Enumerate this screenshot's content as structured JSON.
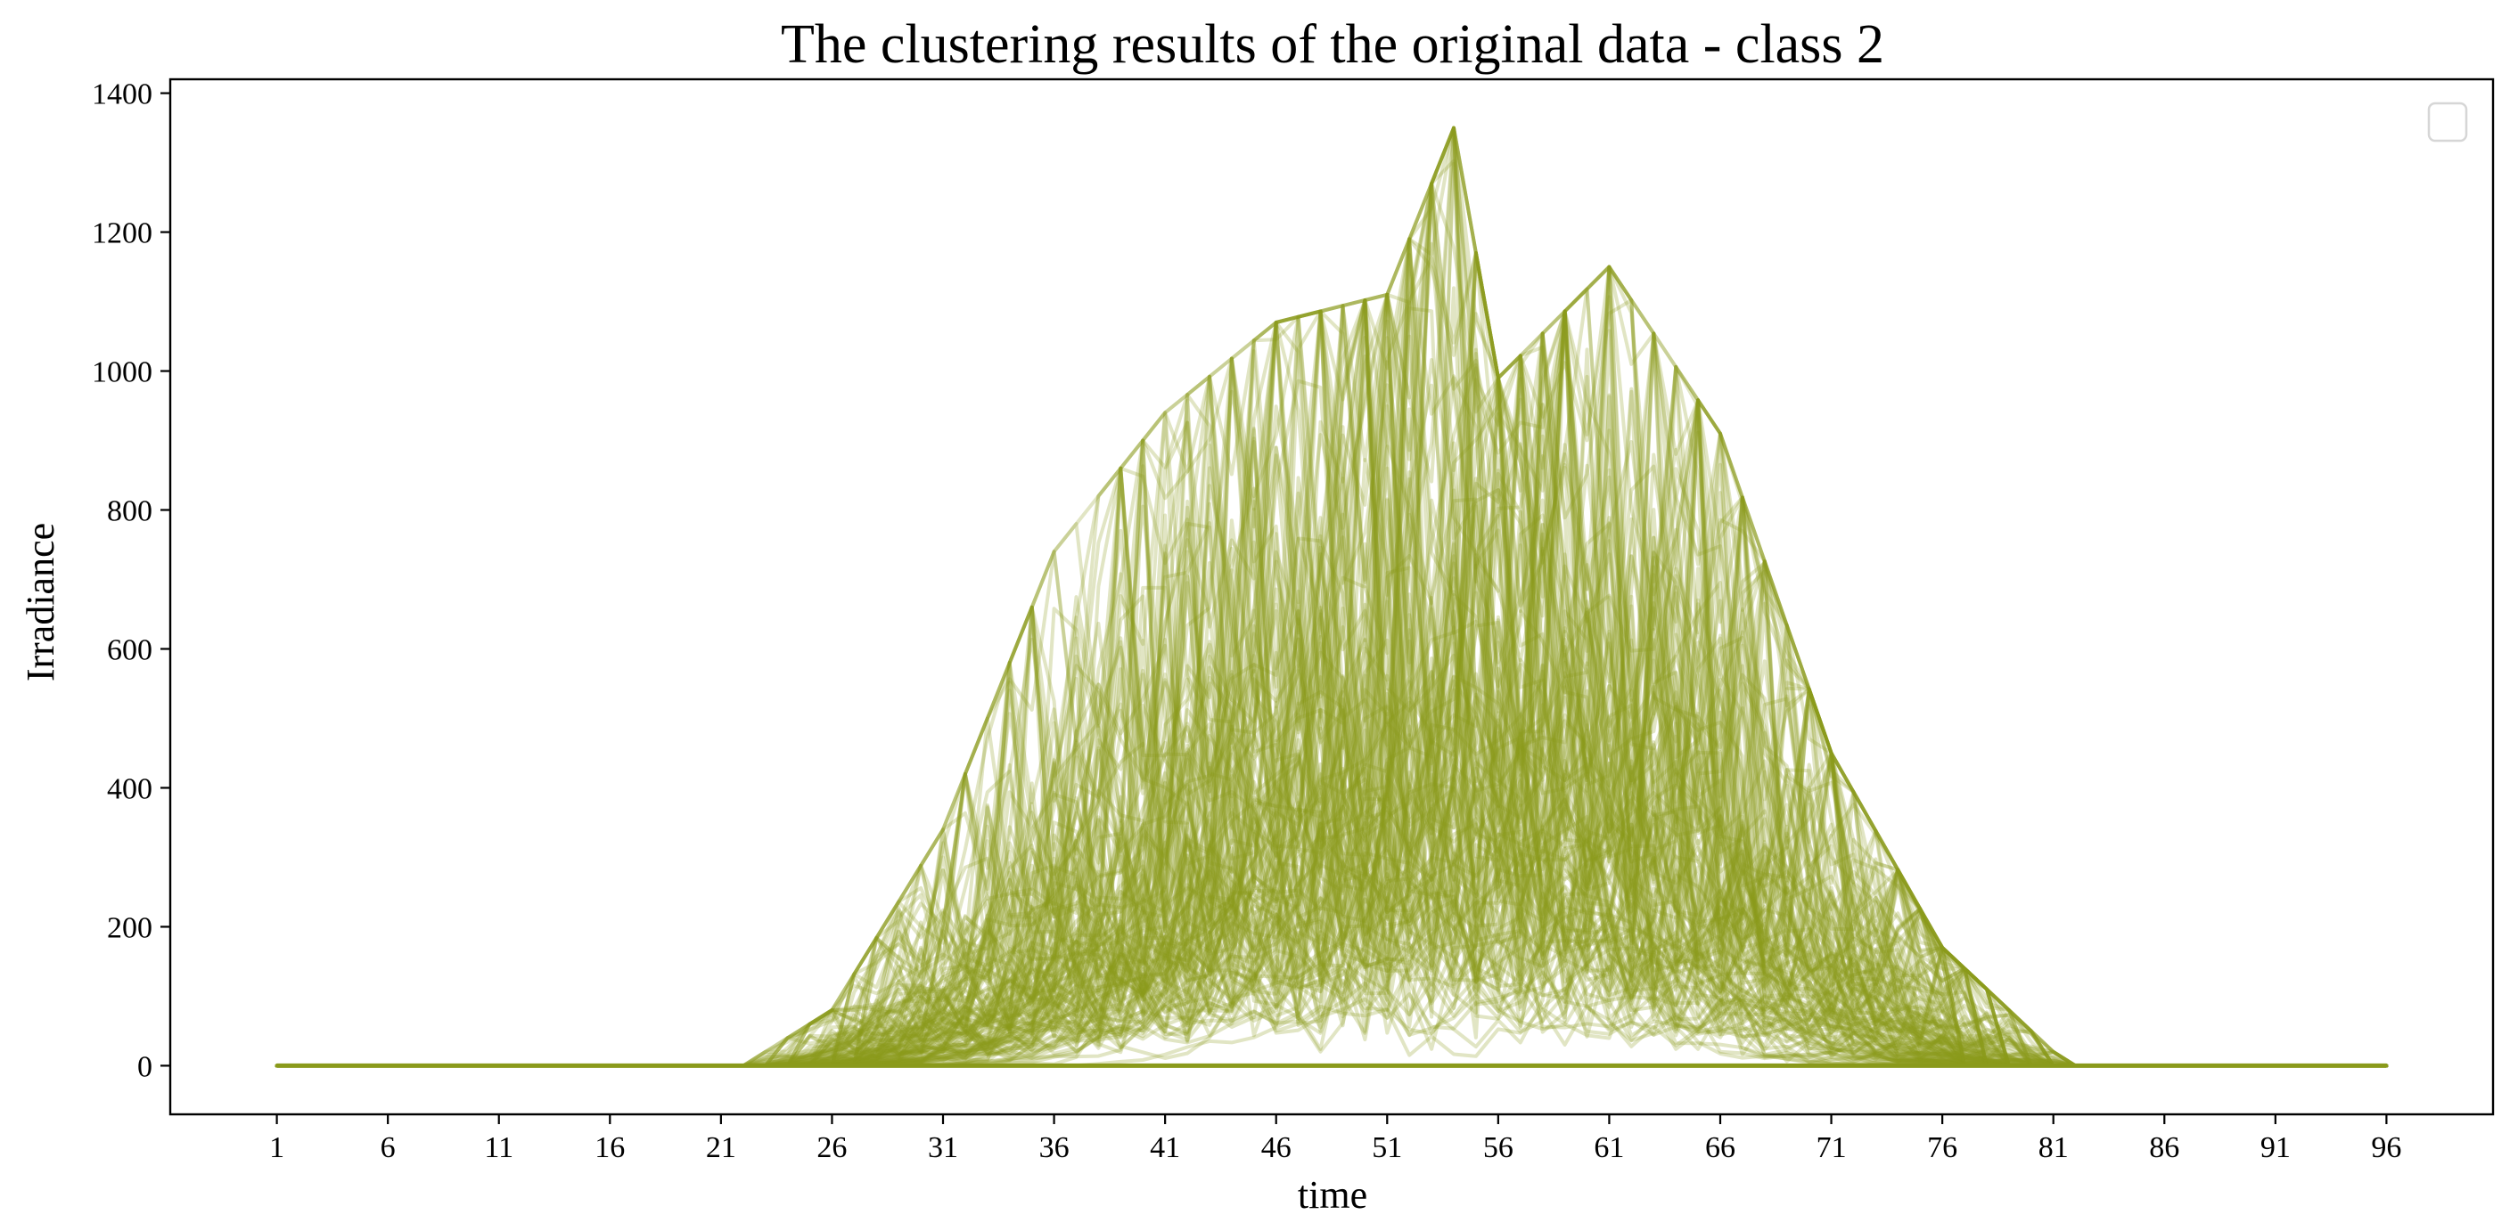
{
  "chart_data": {
    "type": "line",
    "title": "The clustering results of the original data - class 2",
    "xlabel": "time",
    "ylabel": "Irradiance",
    "xlim": [
      -3.8,
      100.8
    ],
    "ylim": [
      -70,
      1420
    ],
    "xticks": [
      1,
      6,
      11,
      16,
      21,
      26,
      31,
      36,
      41,
      46,
      51,
      56,
      61,
      66,
      71,
      76,
      81,
      86,
      91,
      96
    ],
    "yticks": [
      0,
      200,
      400,
      600,
      800,
      1000,
      1200,
      1400
    ],
    "x_range": [
      1,
      96
    ],
    "series_count": 150,
    "series_color": "#8a9a1b",
    "series_opacity": 0.26,
    "grid": false,
    "legend": "top-right (empty)",
    "nonzero_window": [
      22,
      82
    ],
    "envelope": {
      "x": [
        22,
        26,
        31,
        36,
        41,
        46,
        51,
        54,
        56,
        61,
        66,
        71,
        76,
        81
      ],
      "max": [
        0,
        80,
        340,
        740,
        940,
        1070,
        1110,
        1350,
        990,
        1150,
        910,
        450,
        170,
        20
      ],
      "typical": [
        0,
        10,
        60,
        150,
        250,
        330,
        380,
        400,
        380,
        340,
        250,
        120,
        40,
        5
      ]
    }
  }
}
